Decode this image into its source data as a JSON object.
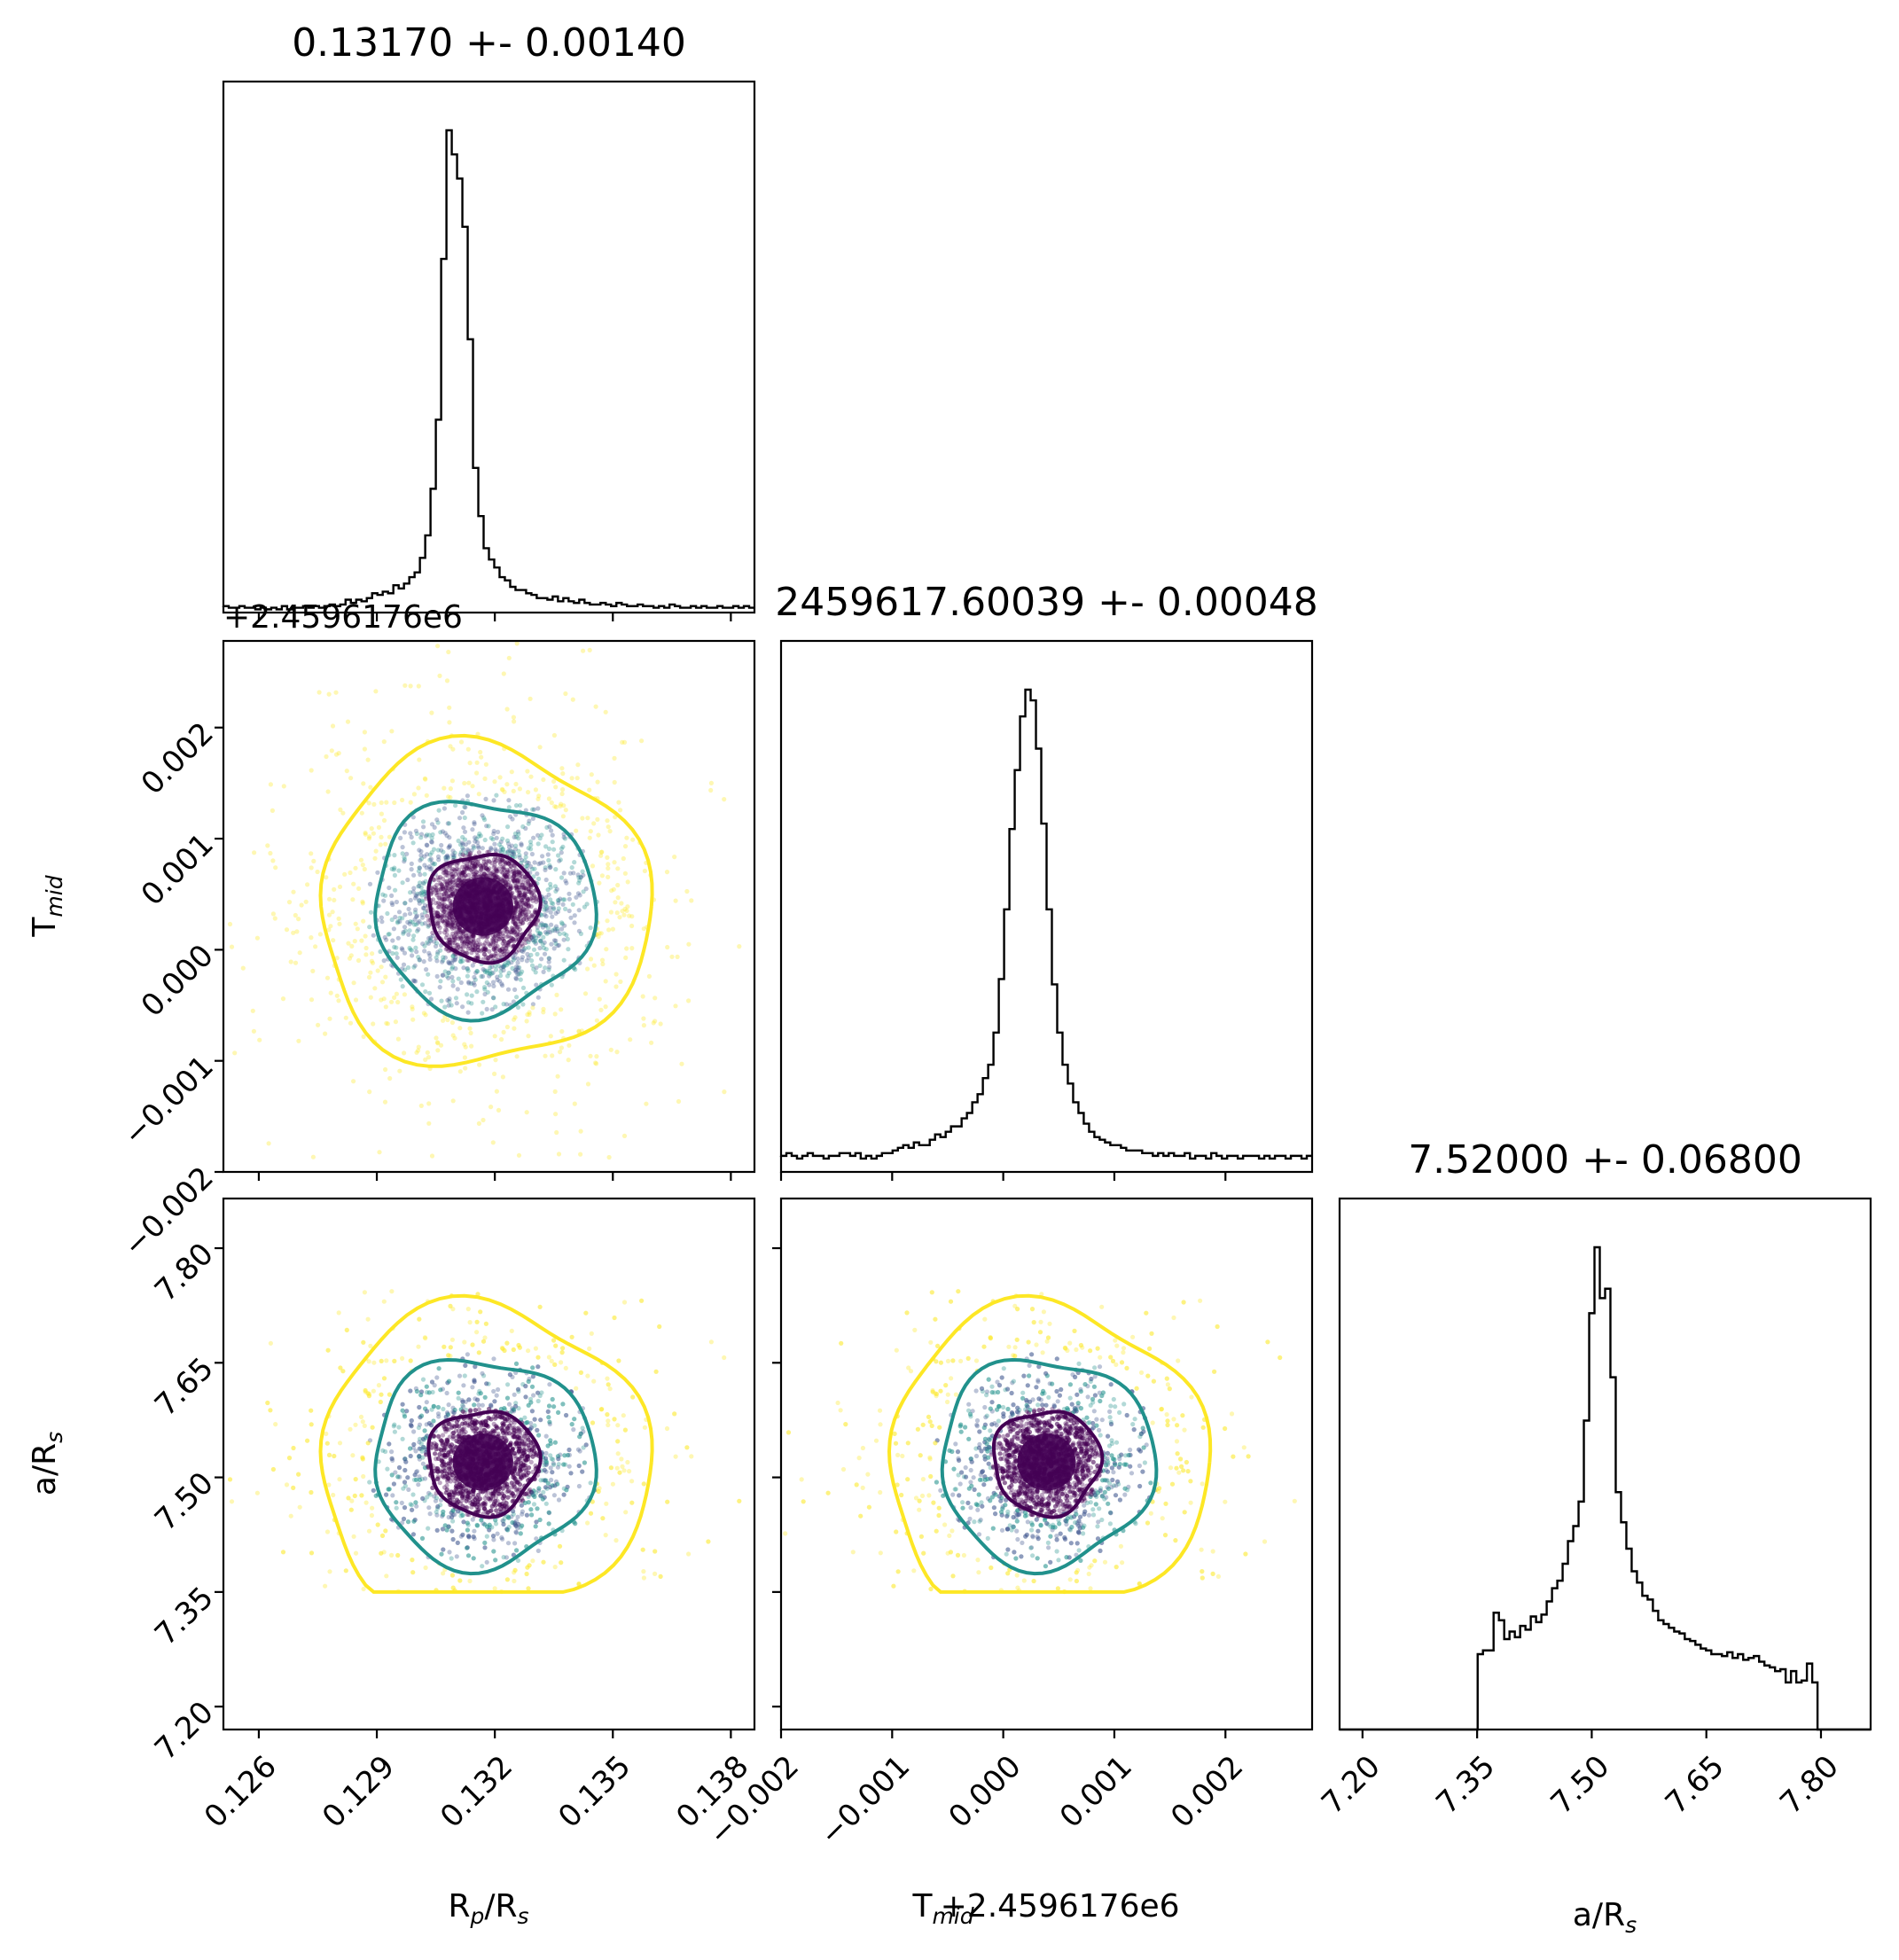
{
  "colors": {
    "hist": "#000000",
    "inner": "#440154",
    "middle": "#21918c",
    "outer": "#fde725",
    "frame": "#000000"
  },
  "chart_data": {
    "type": "corner",
    "parameters": [
      {
        "xlabel": "R$_p$/R$_s$",
        "xlabel_main": "R",
        "xlabel_sub": "p",
        "xlabel_tail": "/R",
        "xlabel_sub2": "s",
        "title": "0.13170 +- 0.00140",
        "mean": 0.1317,
        "sigma": 0.0014,
        "range": [
          0.1251,
          0.1386
        ],
        "ticks": [
          "0.126",
          "0.129",
          "0.132",
          "0.135",
          "0.138"
        ],
        "tick_values": [
          0.126,
          0.129,
          0.132,
          0.135,
          0.138
        ]
      },
      {
        "ylabel_main": "T",
        "ylabel_sub": "mid",
        "xlabel_composite": "T",
        "xlabel_sub": "mid",
        "offset_text": "+2.4596176e6",
        "title": "2459617.60039 +- 0.00048",
        "mean": 0.00039,
        "sigma": 0.00048,
        "range": [
          -0.002,
          0.00278
        ],
        "ticks": [
          "−0.002",
          "−0.001",
          "0.000",
          "0.001",
          "0.002"
        ],
        "tick_values": [
          -0.002,
          -0.001,
          0.0,
          0.001,
          0.002
        ]
      },
      {
        "label_main": "a/R",
        "label_sub": "s",
        "title": "7.52000 +- 0.06800",
        "mean": 7.52,
        "sigma": 0.068,
        "range": [
          7.17,
          7.865
        ],
        "prior_range": [
          7.35,
          7.75
        ],
        "ticks": [
          "7.20",
          "7.35",
          "7.50",
          "7.65",
          "7.80"
        ],
        "tick_values": [
          7.2,
          7.35,
          7.5,
          7.65,
          7.8
        ]
      }
    ],
    "histograms": [
      {
        "param": 0,
        "bin_edges_range": [
          0.1251,
          0.1386
        ],
        "n_bins": 100,
        "counts": [
          4,
          3,
          3,
          4,
          3,
          3,
          2,
          3,
          2,
          3,
          2,
          4,
          2,
          3,
          3,
          4,
          3,
          4,
          3,
          4,
          5,
          4,
          5,
          8,
          6,
          8,
          7,
          9,
          12,
          11,
          13,
          12,
          17,
          15,
          18,
          22,
          25,
          34,
          48,
          77,
          120,
          220,
          300,
          285,
          270,
          240,
          170,
          90,
          60,
          40,
          33,
          28,
          22,
          20,
          16,
          14,
          14,
          12,
          11,
          9,
          9,
          8,
          10,
          7,
          9,
          7,
          6,
          8,
          6,
          5,
          5,
          6,
          5,
          4,
          6,
          5,
          4,
          4,
          5,
          4,
          4,
          3,
          4,
          3,
          5,
          4,
          3,
          3,
          4,
          3,
          4,
          3,
          3,
          4,
          3,
          3,
          4,
          3,
          4,
          3
        ]
      },
      {
        "param": 1,
        "bin_edges_range": [
          -0.002,
          0.00278
        ],
        "n_bins": 100,
        "counts": [
          6,
          7,
          6,
          5,
          6,
          7,
          6,
          6,
          5,
          6,
          6,
          7,
          7,
          6,
          7,
          5,
          6,
          5,
          6,
          7,
          7,
          8,
          9,
          10,
          9,
          11,
          10,
          10,
          12,
          14,
          13,
          15,
          17,
          17,
          20,
          22,
          26,
          29,
          35,
          40,
          52,
          72,
          98,
          128,
          150,
          170,
          180,
          176,
          158,
          130,
          98,
          70,
          52,
          40,
          33,
          26,
          22,
          18,
          15,
          13,
          12,
          11,
          10,
          10,
          9,
          8,
          8,
          8,
          7,
          7,
          6,
          7,
          6,
          7,
          6,
          6,
          7,
          5,
          6,
          6,
          5,
          7,
          6,
          5,
          6,
          6,
          5,
          6,
          6,
          6,
          5,
          6,
          5,
          6,
          6,
          5,
          6,
          6,
          5,
          6
        ]
      },
      {
        "param": 2,
        "bin_edges_range": [
          7.17,
          7.865
        ],
        "n_bins": 100,
        "counts": [
          0,
          0,
          0,
          0,
          0,
          0,
          0,
          0,
          0,
          0,
          0,
          0,
          0,
          0,
          0,
          0,
          0,
          0,
          0,
          0,
          0,
          0,
          0,
          0,
          0,
          0,
          40,
          42,
          42,
          62,
          58,
          48,
          52,
          49,
          55,
          53,
          60,
          57,
          61,
          68,
          75,
          79,
          88,
          100,
          108,
          121,
          164,
          221,
          256,
          229,
          234,
          187,
          126,
          110,
          96,
          84,
          78,
          71,
          69,
          63,
          58,
          56,
          54,
          52,
          51,
          48,
          47,
          45,
          43,
          42,
          40,
          40,
          39,
          41,
          38,
          40,
          37,
          38,
          39,
          36,
          34,
          33,
          31,
          32,
          25,
          31,
          25,
          26,
          35,
          25,
          0,
          0,
          0,
          0,
          0,
          0,
          0,
          0,
          0,
          0
        ]
      }
    ],
    "contour_levels": [
      "inner",
      "middle",
      "outer"
    ],
    "scatter_alpha": 0.3
  }
}
